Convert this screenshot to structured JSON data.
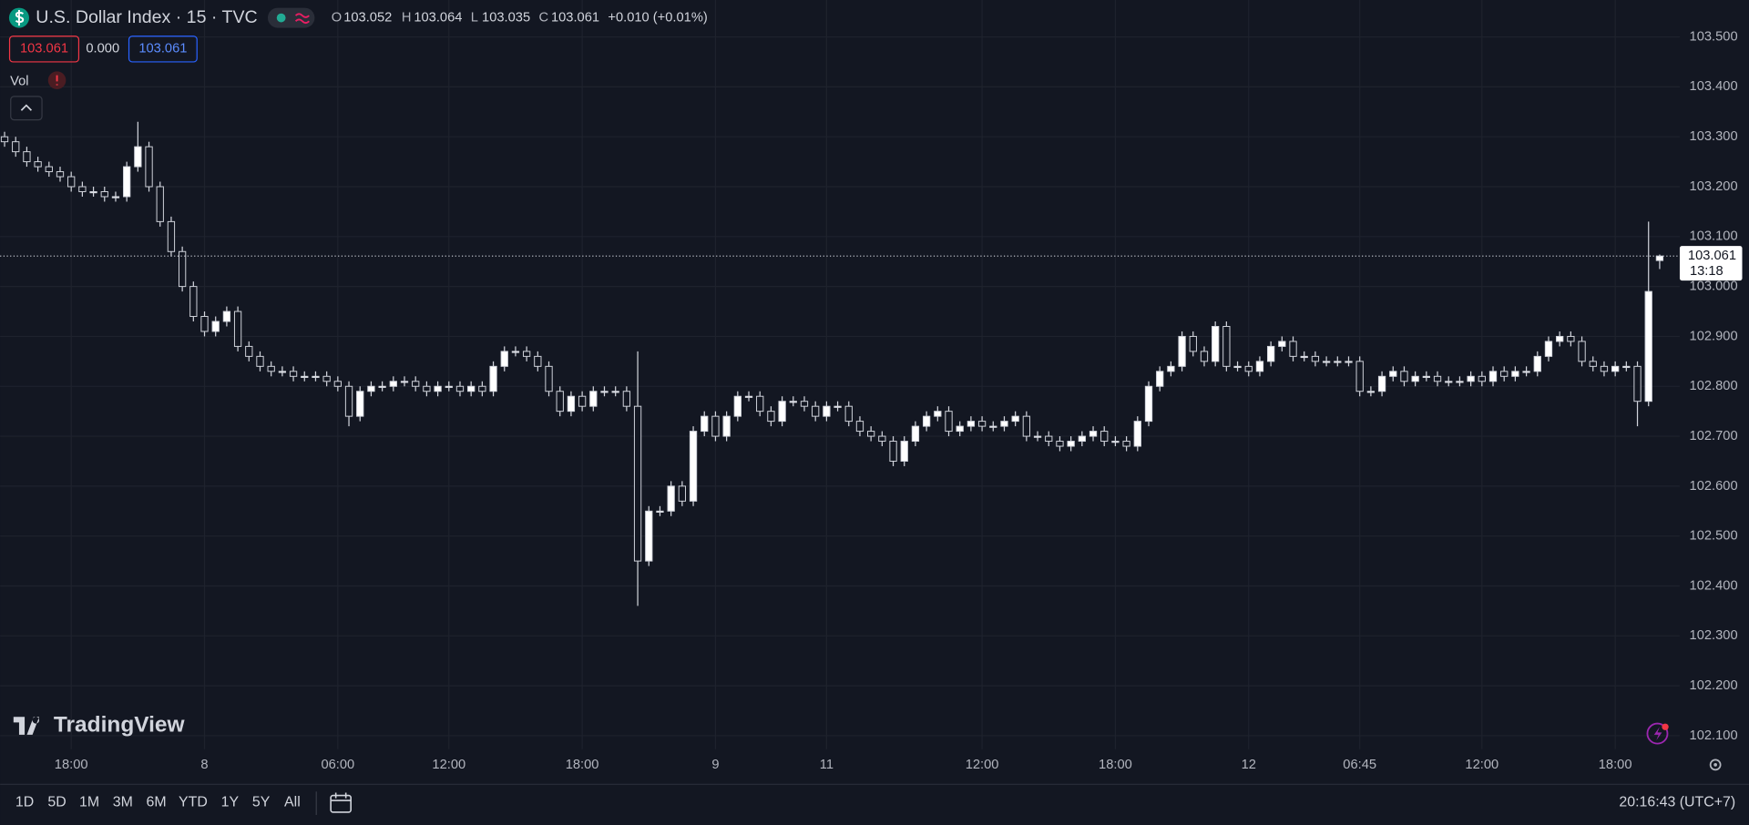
{
  "chart_data": {
    "type": "candlestick",
    "title": "U.S. Dollar Index · 15 · TVC",
    "up_color": "#ffffff",
    "down_color": "#131722",
    "wick_color": "#d1d4dc",
    "grid": true,
    "open": [
      103.3,
      103.29,
      103.27,
      103.25,
      103.24,
      103.23,
      103.22,
      103.2,
      103.19,
      103.19,
      103.18,
      103.18,
      103.24,
      103.28,
      103.2,
      103.13,
      103.07,
      103.0,
      102.94,
      102.91,
      102.93,
      102.95,
      102.88,
      102.86,
      102.84,
      102.83,
      102.83,
      102.82,
      102.82,
      102.82,
      102.81,
      102.8,
      102.74,
      102.79,
      102.8,
      102.8,
      102.81,
      102.81,
      102.8,
      102.79,
      102.8,
      102.8,
      102.79,
      102.8,
      102.79,
      102.84,
      102.87,
      102.87,
      102.86,
      102.84,
      102.79,
      102.75,
      102.78,
      102.76,
      102.79,
      102.79,
      102.79,
      102.76,
      102.45,
      102.55,
      102.55,
      102.6,
      102.57,
      102.71,
      102.74,
      102.7,
      102.74,
      102.78,
      102.78,
      102.75,
      102.73,
      102.77,
      102.77,
      102.76,
      102.74,
      102.76,
      102.76,
      102.73,
      102.71,
      102.7,
      102.69,
      102.65,
      102.69,
      102.72,
      102.74,
      102.75,
      102.71,
      102.72,
      102.73,
      102.72,
      102.72,
      102.73,
      102.74,
      102.7,
      102.7,
      102.69,
      102.68,
      102.69,
      102.7,
      102.71,
      102.69,
      102.69,
      102.68,
      102.73,
      102.8,
      102.83,
      102.84,
      102.9,
      102.87,
      102.85,
      102.92,
      102.84,
      102.84,
      102.83,
      102.85,
      102.88,
      102.89,
      102.86,
      102.86,
      102.85,
      102.85,
      102.85,
      102.85,
      102.79,
      102.79,
      102.82,
      102.83,
      102.81,
      102.82,
      102.82,
      102.81,
      102.81,
      102.81,
      102.82,
      102.81,
      102.83,
      102.82,
      102.83,
      102.83,
      102.86,
      102.89,
      102.9,
      102.89,
      102.85,
      102.84,
      102.83,
      102.84,
      102.84,
      102.77,
      103.052
    ],
    "high": [
      103.31,
      103.3,
      103.28,
      103.26,
      103.25,
      103.24,
      103.23,
      103.21,
      103.2,
      103.2,
      103.19,
      103.25,
      103.33,
      103.29,
      103.21,
      103.14,
      103.08,
      103.01,
      102.95,
      102.94,
      102.96,
      102.96,
      102.89,
      102.87,
      102.85,
      102.84,
      102.84,
      102.83,
      102.83,
      102.83,
      102.82,
      102.81,
      102.8,
      102.81,
      102.81,
      102.82,
      102.82,
      102.82,
      102.81,
      102.81,
      102.81,
      102.81,
      102.81,
      102.81,
      102.85,
      102.88,
      102.88,
      102.88,
      102.87,
      102.85,
      102.8,
      102.79,
      102.79,
      102.8,
      102.8,
      102.8,
      102.8,
      102.87,
      102.56,
      102.56,
      102.61,
      102.61,
      102.72,
      102.75,
      102.75,
      102.75,
      102.79,
      102.79,
      102.79,
      102.76,
      102.78,
      102.78,
      102.78,
      102.77,
      102.77,
      102.77,
      102.77,
      102.74,
      102.72,
      102.71,
      102.7,
      102.7,
      102.73,
      102.75,
      102.76,
      102.76,
      102.73,
      102.74,
      102.74,
      102.73,
      102.74,
      102.75,
      102.75,
      102.71,
      102.71,
      102.7,
      102.7,
      102.71,
      102.72,
      102.72,
      102.7,
      102.7,
      102.74,
      102.81,
      102.84,
      102.85,
      102.91,
      102.91,
      102.88,
      102.93,
      102.93,
      102.85,
      102.85,
      102.86,
      102.89,
      102.9,
      102.9,
      102.87,
      102.87,
      102.86,
      102.86,
      102.86,
      102.86,
      102.8,
      102.83,
      102.84,
      102.84,
      102.83,
      102.83,
      102.83,
      102.82,
      102.82,
      102.83,
      102.83,
      102.84,
      102.84,
      102.84,
      102.84,
      102.87,
      102.9,
      102.91,
      102.91,
      102.9,
      102.86,
      102.85,
      102.85,
      102.85,
      102.85,
      103.13,
      103.064
    ],
    "low": [
      103.28,
      103.26,
      103.24,
      103.23,
      103.22,
      103.21,
      103.19,
      103.18,
      103.18,
      103.17,
      103.17,
      103.17,
      103.23,
      103.19,
      103.12,
      103.06,
      102.99,
      102.93,
      102.9,
      102.9,
      102.92,
      102.87,
      102.85,
      102.83,
      102.82,
      102.82,
      102.81,
      102.81,
      102.81,
      102.8,
      102.79,
      102.72,
      102.73,
      102.78,
      102.79,
      102.79,
      102.8,
      102.79,
      102.78,
      102.78,
      102.79,
      102.78,
      102.78,
      102.78,
      102.78,
      102.83,
      102.86,
      102.85,
      102.83,
      102.78,
      102.74,
      102.74,
      102.75,
      102.75,
      102.78,
      102.78,
      102.75,
      102.36,
      102.44,
      102.54,
      102.54,
      102.56,
      102.56,
      102.7,
      102.69,
      102.69,
      102.73,
      102.77,
      102.74,
      102.72,
      102.72,
      102.76,
      102.75,
      102.73,
      102.73,
      102.75,
      102.72,
      102.7,
      102.69,
      102.68,
      102.64,
      102.64,
      102.68,
      102.71,
      102.73,
      102.7,
      102.7,
      102.71,
      102.71,
      102.71,
      102.71,
      102.72,
      102.69,
      102.69,
      102.68,
      102.67,
      102.67,
      102.68,
      102.69,
      102.68,
      102.68,
      102.67,
      102.67,
      102.72,
      102.79,
      102.82,
      102.83,
      102.86,
      102.84,
      102.84,
      102.83,
      102.83,
      102.82,
      102.82,
      102.84,
      102.87,
      102.85,
      102.85,
      102.84,
      102.84,
      102.84,
      102.84,
      102.78,
      102.78,
      102.78,
      102.81,
      102.8,
      102.8,
      102.81,
      102.8,
      102.8,
      102.8,
      102.8,
      102.8,
      102.8,
      102.81,
      102.81,
      102.82,
      102.82,
      102.85,
      102.88,
      102.88,
      102.84,
      102.83,
      102.82,
      102.82,
      102.83,
      102.72,
      102.76,
      103.035
    ],
    "close": [
      103.29,
      103.27,
      103.25,
      103.24,
      103.23,
      103.22,
      103.2,
      103.19,
      103.19,
      103.18,
      103.18,
      103.24,
      103.28,
      103.2,
      103.13,
      103.07,
      103.0,
      102.94,
      102.91,
      102.93,
      102.95,
      102.88,
      102.86,
      102.84,
      102.83,
      102.83,
      102.82,
      102.82,
      102.82,
      102.81,
      102.8,
      102.74,
      102.79,
      102.8,
      102.8,
      102.81,
      102.81,
      102.8,
      102.79,
      102.8,
      102.8,
      102.79,
      102.8,
      102.79,
      102.84,
      102.87,
      102.87,
      102.86,
      102.84,
      102.79,
      102.75,
      102.78,
      102.76,
      102.79,
      102.79,
      102.79,
      102.76,
      102.45,
      102.55,
      102.55,
      102.6,
      102.57,
      102.71,
      102.74,
      102.7,
      102.74,
      102.78,
      102.78,
      102.75,
      102.73,
      102.77,
      102.77,
      102.76,
      102.74,
      102.76,
      102.76,
      102.73,
      102.71,
      102.7,
      102.69,
      102.65,
      102.69,
      102.72,
      102.74,
      102.75,
      102.71,
      102.72,
      102.73,
      102.72,
      102.72,
      102.73,
      102.74,
      102.7,
      102.7,
      102.69,
      102.68,
      102.69,
      102.7,
      102.71,
      102.69,
      102.69,
      102.68,
      102.73,
      102.8,
      102.83,
      102.84,
      102.9,
      102.87,
      102.85,
      102.92,
      102.84,
      102.84,
      102.83,
      102.85,
      102.88,
      102.89,
      102.86,
      102.86,
      102.85,
      102.85,
      102.85,
      102.85,
      102.79,
      102.79,
      102.82,
      102.83,
      102.81,
      102.82,
      102.82,
      102.81,
      102.81,
      102.81,
      102.82,
      102.81,
      102.83,
      102.82,
      102.83,
      102.83,
      102.86,
      102.89,
      102.9,
      102.89,
      102.85,
      102.84,
      102.83,
      102.84,
      102.84,
      102.77,
      102.99,
      103.061
    ],
    "ylim": [
      102.073,
      103.574
    ],
    "yticks": [
      {
        "value": 102.1,
        "label": "102.100"
      },
      {
        "value": 102.2,
        "label": "102.200"
      },
      {
        "value": 102.3,
        "label": "102.300"
      },
      {
        "value": 102.4,
        "label": "102.400"
      },
      {
        "value": 102.5,
        "label": "102.500"
      },
      {
        "value": 102.6,
        "label": "102.600"
      },
      {
        "value": 102.7,
        "label": "102.700"
      },
      {
        "value": 102.8,
        "label": "102.800"
      },
      {
        "value": 102.9,
        "label": "102.900"
      },
      {
        "value": 103.0,
        "label": "103.000"
      },
      {
        "value": 103.1,
        "label": "103.100"
      },
      {
        "value": 103.2,
        "label": "103.200"
      },
      {
        "value": 103.3,
        "label": "103.300"
      },
      {
        "value": 103.4,
        "label": "103.400"
      },
      {
        "value": 103.5,
        "label": "103.500"
      }
    ],
    "xticks": [
      {
        "value": 6,
        "label": "18:00"
      },
      {
        "value": 18,
        "label": "8"
      },
      {
        "value": 30,
        "label": "06:00"
      },
      {
        "value": 40,
        "label": "12:00"
      },
      {
        "value": 52,
        "label": "18:00"
      },
      {
        "value": 64,
        "label": "9"
      },
      {
        "value": 74,
        "label": "11"
      },
      {
        "value": 88,
        "label": "12:00"
      },
      {
        "value": 100,
        "label": "18:00"
      },
      {
        "value": 112,
        "label": "12"
      },
      {
        "value": 122,
        "label": "06:45"
      },
      {
        "value": 133,
        "label": "12:00"
      },
      {
        "value": 145,
        "label": "18:00"
      }
    ],
    "countdown": "13:18"
  },
  "ui": {
    "ohlc_labels": [
      "O",
      "H",
      "L",
      "C"
    ],
    "change": "+0.010 (+0.01%)",
    "bid": "103.061",
    "spread": "0.000",
    "ask": "103.061",
    "volume_label": "Vol",
    "logo": "TradingView",
    "ranges": [
      "1D",
      "5D",
      "1M",
      "3M",
      "6M",
      "YTD",
      "1Y",
      "5Y",
      "All"
    ],
    "clock": "20:16:43 (UTC+7)"
  }
}
